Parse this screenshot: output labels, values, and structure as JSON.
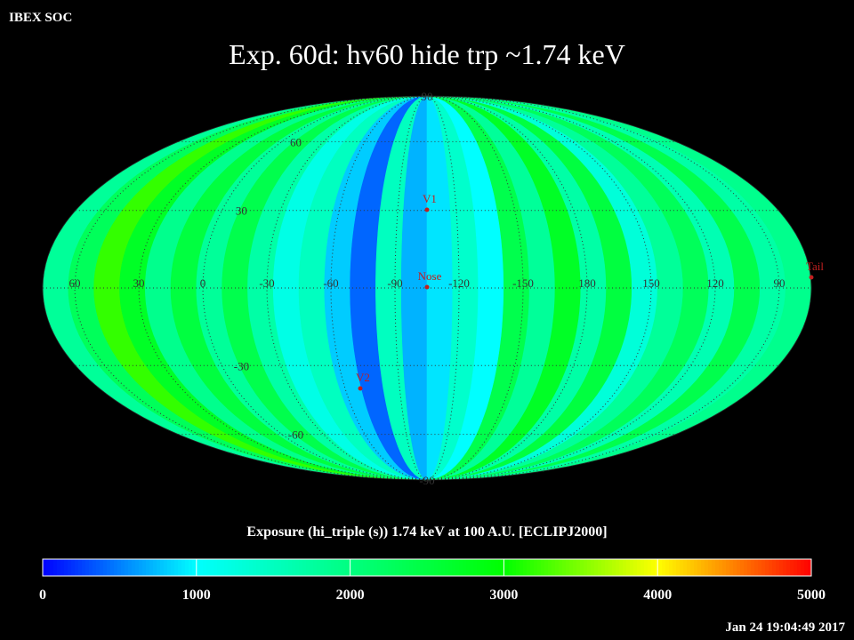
{
  "header": {
    "source": "IBEX SOC",
    "title": "Exp.   60d: hv60 hide trp ~1.74 keV",
    "timestamp": "Jan 24 19:04:49 2017"
  },
  "map": {
    "strip_values": [
      1800,
      2300,
      3200,
      2700,
      1900,
      2500,
      1800,
      2400,
      1700,
      1200,
      1500,
      800,
      400,
      1500,
      700,
      900,
      1400,
      1000,
      2400,
      1800,
      2700,
      1700,
      2500,
      1300,
      1800,
      2300,
      1600,
      2400,
      1700,
      1900
    ],
    "lat_labels": [
      90,
      60,
      30,
      -30,
      -60,
      -90
    ],
    "lon_labels": [
      60,
      30,
      0,
      -30,
      -60,
      -90,
      -120,
      -150,
      180,
      150,
      120,
      90
    ],
    "markers": [
      "V1",
      "Nose",
      "V2",
      "Tail"
    ]
  },
  "colorbar": {
    "label": "Exposure (hi_triple (s))  1.74 keV at 100 A.U. [ECLIPJ2000]",
    "lim": [
      0,
      5000
    ],
    "ticks": [
      0,
      1000,
      2000,
      3000,
      4000,
      5000
    ]
  }
}
